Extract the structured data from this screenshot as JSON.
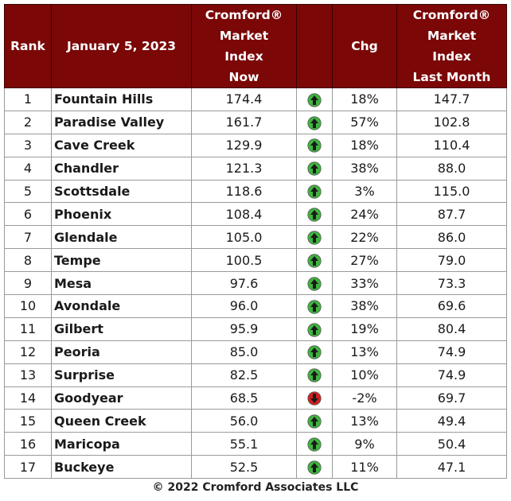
{
  "header": {
    "rank": "Rank",
    "date": "January 5, 2023",
    "now": [
      "Cromford®",
      "Market",
      "Index",
      "Now"
    ],
    "chg": "Chg",
    "last": [
      "Cromford®",
      "Market",
      "Index",
      "Last Month"
    ]
  },
  "rows": [
    {
      "rank": "1",
      "city": "Fountain Hills",
      "now": "174.4",
      "dir": "up",
      "chg": "18%",
      "last": "147.7"
    },
    {
      "rank": "2",
      "city": "Paradise Valley",
      "now": "161.7",
      "dir": "up",
      "chg": "57%",
      "last": "102.8"
    },
    {
      "rank": "3",
      "city": "Cave Creek",
      "now": "129.9",
      "dir": "up",
      "chg": "18%",
      "last": "110.4"
    },
    {
      "rank": "4",
      "city": "Chandler",
      "now": "121.3",
      "dir": "up",
      "chg": "38%",
      "last": "88.0"
    },
    {
      "rank": "5",
      "city": "Scottsdale",
      "now": "118.6",
      "dir": "up",
      "chg": "3%",
      "last": "115.0"
    },
    {
      "rank": "6",
      "city": "Phoenix",
      "now": "108.4",
      "dir": "up",
      "chg": "24%",
      "last": "87.7"
    },
    {
      "rank": "7",
      "city": "Glendale",
      "now": "105.0",
      "dir": "up",
      "chg": "22%",
      "last": "86.0"
    },
    {
      "rank": "8",
      "city": "Tempe",
      "now": "100.5",
      "dir": "up",
      "chg": "27%",
      "last": "79.0"
    },
    {
      "rank": "9",
      "city": "Mesa",
      "now": "97.6",
      "dir": "up",
      "chg": "33%",
      "last": "73.3"
    },
    {
      "rank": "10",
      "city": "Avondale",
      "now": "96.0",
      "dir": "up",
      "chg": "38%",
      "last": "69.6"
    },
    {
      "rank": "11",
      "city": "Gilbert",
      "now": "95.9",
      "dir": "up",
      "chg": "19%",
      "last": "80.4"
    },
    {
      "rank": "12",
      "city": "Peoria",
      "now": "85.0",
      "dir": "up",
      "chg": "13%",
      "last": "74.9"
    },
    {
      "rank": "13",
      "city": "Surprise",
      "now": "82.5",
      "dir": "up",
      "chg": "10%",
      "last": "74.9"
    },
    {
      "rank": "14",
      "city": "Goodyear",
      "now": "68.5",
      "dir": "down",
      "chg": "-2%",
      "last": "69.7"
    },
    {
      "rank": "15",
      "city": "Queen Creek",
      "now": "56.0",
      "dir": "up",
      "chg": "13%",
      "last": "49.4"
    },
    {
      "rank": "16",
      "city": "Maricopa",
      "now": "55.1",
      "dir": "up",
      "chg": "9%",
      "last": "50.4"
    },
    {
      "rank": "17",
      "city": "Buckeye",
      "now": "52.5",
      "dir": "up",
      "chg": "11%",
      "last": "47.1"
    }
  ],
  "icons": {
    "up": "green-up-arrow-icon",
    "down": "red-down-arrow-icon"
  },
  "colors": {
    "header_bg": "#7b0707",
    "up": "#3fb53f",
    "down": "#d21f1f"
  },
  "footer": "© 2022 Cromford Associates LLC"
}
